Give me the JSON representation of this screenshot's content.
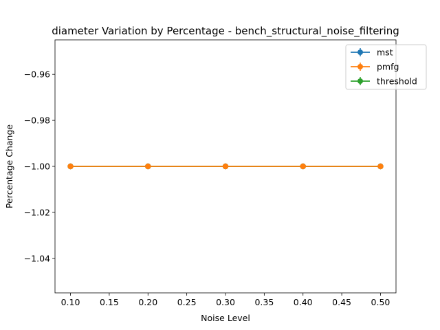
{
  "chart_data": {
    "type": "line",
    "title": "diameter Variation by Percentage - bench_structural_noise_filtering",
    "xlabel": "Noise Level",
    "ylabel": "Percentage Change",
    "x": [
      0.1,
      0.2,
      0.3,
      0.4,
      0.5
    ],
    "xlim": [
      0.08,
      0.52
    ],
    "ylim": [
      -1.055,
      -0.945
    ],
    "xticks": [
      "0.10",
      "0.15",
      "0.20",
      "0.25",
      "0.30",
      "0.35",
      "0.40",
      "0.45",
      "0.50"
    ],
    "xtick_values": [
      0.1,
      0.15,
      0.2,
      0.25,
      0.3,
      0.35,
      0.4,
      0.45,
      0.5
    ],
    "yticks": [
      "−0.96",
      "−0.98",
      "−1.00",
      "−1.02",
      "−1.04"
    ],
    "ytick_values": [
      -0.96,
      -0.98,
      -1.0,
      -1.02,
      -1.04
    ],
    "grid": false,
    "legend_position": "top-right",
    "series": [
      {
        "name": "mst",
        "color": "#1f77b4",
        "values": [
          -1.0,
          -1.0,
          -1.0,
          -1.0,
          -1.0
        ]
      },
      {
        "name": "threshold",
        "color": "#2ca02c",
        "values": [
          -1.0,
          -1.0,
          -1.0,
          -1.0,
          -1.0
        ]
      },
      {
        "name": "pmfg",
        "color": "#ff7f0e",
        "values": [
          -1.0,
          -1.0,
          -1.0,
          -1.0,
          -1.0
        ]
      }
    ],
    "legend_order": [
      "mst",
      "pmfg",
      "threshold"
    ]
  }
}
